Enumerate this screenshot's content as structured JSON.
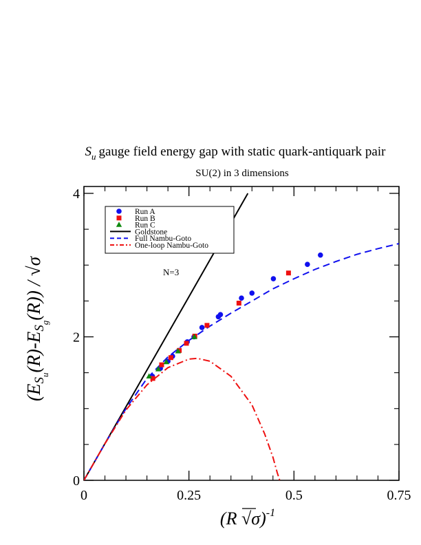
{
  "chart_data": {
    "type": "scatter",
    "title_symbol": "S",
    "title_symbol_sub": "u",
    "title_rest": "gauge field energy gap with static quark-antiquark pair",
    "subtitle": "SU(2) in 3 dimensions",
    "annotation": "N=3",
    "xlabel": {
      "open": "(R ",
      "sqrt": "√",
      "sigma": "σ",
      "close": ")",
      "exponent": "-1"
    },
    "ylabel": {
      "open": "(E",
      "sym": "S",
      "sub_u": "u",
      "mid": "(R)-E",
      "sub_g": "g",
      "close": "(R)) / ",
      "sqrt": "√",
      "sigma": "σ"
    },
    "xlim": [
      0,
      0.75
    ],
    "ylim": [
      0,
      4
    ],
    "xticks": [
      {
        "value": 0,
        "label": "0"
      },
      {
        "value": 0.25,
        "label": "0.25"
      },
      {
        "value": 0.5,
        "label": "0.5"
      },
      {
        "value": 0.75,
        "label": "0.75"
      }
    ],
    "yticks": [
      {
        "value": 0,
        "label": "0"
      },
      {
        "value": 2,
        "label": "2"
      },
      {
        "value": 4,
        "label": "4"
      }
    ],
    "legend_position": "top-left",
    "series": [
      {
        "name": "Run A",
        "kind": "points",
        "marker": "circle",
        "color": "#1010ee",
        "points": [
          [
            0.163,
            1.45
          ],
          [
            0.182,
            1.56
          ],
          [
            0.2,
            1.66
          ],
          [
            0.211,
            1.73
          ],
          [
            0.226,
            1.81
          ],
          [
            0.246,
            1.93
          ],
          [
            0.262,
            2.0
          ],
          [
            0.281,
            2.13
          ],
          [
            0.32,
            2.28
          ],
          [
            0.325,
            2.31
          ],
          [
            0.375,
            2.54
          ],
          [
            0.4,
            2.61
          ],
          [
            0.451,
            2.81
          ],
          [
            0.532,
            3.01
          ],
          [
            0.563,
            3.14
          ]
        ]
      },
      {
        "name": "Run B",
        "kind": "points",
        "marker": "square",
        "color": "#ee1010",
        "points": [
          [
            0.164,
            1.42
          ],
          [
            0.185,
            1.61
          ],
          [
            0.207,
            1.71
          ],
          [
            0.227,
            1.81
          ],
          [
            0.244,
            1.91
          ],
          [
            0.264,
            2.01
          ],
          [
            0.293,
            2.16
          ],
          [
            0.369,
            2.47
          ],
          [
            0.487,
            2.89
          ]
        ]
      },
      {
        "name": "Run C",
        "kind": "points",
        "marker": "triangle",
        "color": "#108a10",
        "points": [
          [
            0.155,
            1.45
          ],
          [
            0.177,
            1.55
          ],
          [
            0.196,
            1.65
          ],
          [
            0.224,
            1.8
          ],
          [
            0.263,
            2.0
          ]
        ]
      },
      {
        "name": "Goldstone",
        "kind": "line",
        "style": "solid",
        "color": "#000000",
        "points": [
          [
            0,
            0
          ],
          [
            0.25,
            2.56
          ],
          [
            0.3902,
            4.0
          ]
        ]
      },
      {
        "name": "Full Nambu-Goto",
        "kind": "line",
        "style": "dashed",
        "color": "#1010ee",
        "points": [
          [
            0,
            0
          ],
          [
            0.05,
            0.51
          ],
          [
            0.1,
            1.0
          ],
          [
            0.15,
            1.42
          ],
          [
            0.2,
            1.72
          ],
          [
            0.25,
            1.95
          ],
          [
            0.3,
            2.15
          ],
          [
            0.35,
            2.33
          ],
          [
            0.4,
            2.5
          ],
          [
            0.45,
            2.67
          ],
          [
            0.5,
            2.81
          ],
          [
            0.55,
            2.94
          ],
          [
            0.6,
            3.05
          ],
          [
            0.65,
            3.15
          ],
          [
            0.7,
            3.23
          ],
          [
            0.75,
            3.3
          ]
        ]
      },
      {
        "name": "One-loop Nambu-Goto",
        "kind": "line",
        "style": "dashdot",
        "color": "#ee1010",
        "points": [
          [
            0,
            0
          ],
          [
            0.05,
            0.51
          ],
          [
            0.1,
            0.98
          ],
          [
            0.15,
            1.33
          ],
          [
            0.2,
            1.57
          ],
          [
            0.25,
            1.69
          ],
          [
            0.27,
            1.7
          ],
          [
            0.3,
            1.66
          ],
          [
            0.35,
            1.45
          ],
          [
            0.4,
            1.05
          ],
          [
            0.43,
            0.65
          ],
          [
            0.45,
            0.32
          ],
          [
            0.46,
            0.11
          ],
          [
            0.466,
            0.0
          ]
        ]
      }
    ]
  }
}
